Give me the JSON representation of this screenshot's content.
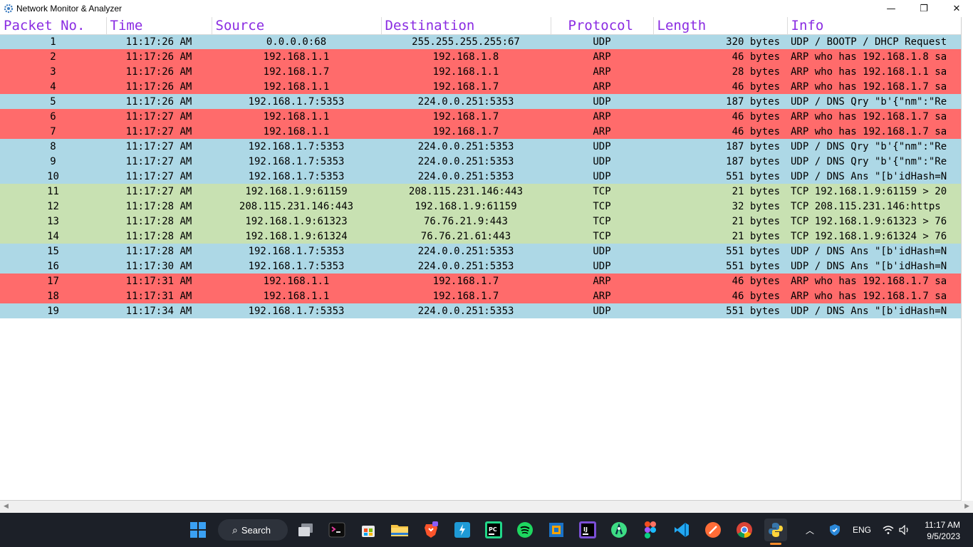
{
  "window": {
    "title": "Network Monitor & Analyzer",
    "app_icon": "gear-icon",
    "controls": {
      "minimize": "—",
      "maximize": "❐",
      "close": "✕"
    }
  },
  "table": {
    "columns": [
      "Packet No.",
      "Time",
      "Source",
      "Destination",
      "Protocol",
      "Length",
      "Info"
    ],
    "rows": [
      {
        "no": "1",
        "time": "11:17:26 AM",
        "src": "0.0.0.0:68",
        "dst": "255.255.255.255:67",
        "proto": "UDP",
        "len": "320 bytes",
        "info": "UDP / BOOTP / DHCP Request"
      },
      {
        "no": "2",
        "time": "11:17:26 AM",
        "src": "192.168.1.1",
        "dst": "192.168.1.8",
        "proto": "ARP",
        "len": "46 bytes",
        "info": "ARP who has 192.168.1.8 sa"
      },
      {
        "no": "3",
        "time": "11:17:26 AM",
        "src": "192.168.1.7",
        "dst": "192.168.1.1",
        "proto": "ARP",
        "len": "28 bytes",
        "info": "ARP who has 192.168.1.1 sa"
      },
      {
        "no": "4",
        "time": "11:17:26 AM",
        "src": "192.168.1.1",
        "dst": "192.168.1.7",
        "proto": "ARP",
        "len": "46 bytes",
        "info": "ARP who has 192.168.1.7 sa"
      },
      {
        "no": "5",
        "time": "11:17:26 AM",
        "src": "192.168.1.7:5353",
        "dst": "224.0.0.251:5353",
        "proto": "UDP",
        "len": "187 bytes",
        "info": "UDP / DNS Qry \"b'{\"nm\":\"Re"
      },
      {
        "no": "6",
        "time": "11:17:27 AM",
        "src": "192.168.1.1",
        "dst": "192.168.1.7",
        "proto": "ARP",
        "len": "46 bytes",
        "info": "ARP who has 192.168.1.7 sa"
      },
      {
        "no": "7",
        "time": "11:17:27 AM",
        "src": "192.168.1.1",
        "dst": "192.168.1.7",
        "proto": "ARP",
        "len": "46 bytes",
        "info": "ARP who has 192.168.1.7 sa"
      },
      {
        "no": "8",
        "time": "11:17:27 AM",
        "src": "192.168.1.7:5353",
        "dst": "224.0.0.251:5353",
        "proto": "UDP",
        "len": "187 bytes",
        "info": "UDP / DNS Qry \"b'{\"nm\":\"Re"
      },
      {
        "no": "9",
        "time": "11:17:27 AM",
        "src": "192.168.1.7:5353",
        "dst": "224.0.0.251:5353",
        "proto": "UDP",
        "len": "187 bytes",
        "info": "UDP / DNS Qry \"b'{\"nm\":\"Re"
      },
      {
        "no": "10",
        "time": "11:17:27 AM",
        "src": "192.168.1.7:5353",
        "dst": "224.0.0.251:5353",
        "proto": "UDP",
        "len": "551 bytes",
        "info": "UDP / DNS Ans \"[b'idHash=N"
      },
      {
        "no": "11",
        "time": "11:17:27 AM",
        "src": "192.168.1.9:61159",
        "dst": "208.115.231.146:443",
        "proto": "TCP",
        "len": "21 bytes",
        "info": "TCP 192.168.1.9:61159 > 20"
      },
      {
        "no": "12",
        "time": "11:17:28 AM",
        "src": "208.115.231.146:443",
        "dst": "192.168.1.9:61159",
        "proto": "TCP",
        "len": "32 bytes",
        "info": "TCP 208.115.231.146:https"
      },
      {
        "no": "13",
        "time": "11:17:28 AM",
        "src": "192.168.1.9:61323",
        "dst": "76.76.21.9:443",
        "proto": "TCP",
        "len": "21 bytes",
        "info": "TCP 192.168.1.9:61323 > 76"
      },
      {
        "no": "14",
        "time": "11:17:28 AM",
        "src": "192.168.1.9:61324",
        "dst": "76.76.21.61:443",
        "proto": "TCP",
        "len": "21 bytes",
        "info": "TCP 192.168.1.9:61324 > 76"
      },
      {
        "no": "15",
        "time": "11:17:28 AM",
        "src": "192.168.1.7:5353",
        "dst": "224.0.0.251:5353",
        "proto": "UDP",
        "len": "551 bytes",
        "info": "UDP / DNS Ans \"[b'idHash=N"
      },
      {
        "no": "16",
        "time": "11:17:30 AM",
        "src": "192.168.1.7:5353",
        "dst": "224.0.0.251:5353",
        "proto": "UDP",
        "len": "551 bytes",
        "info": "UDP / DNS Ans \"[b'idHash=N"
      },
      {
        "no": "17",
        "time": "11:17:31 AM",
        "src": "192.168.1.1",
        "dst": "192.168.1.7",
        "proto": "ARP",
        "len": "46 bytes",
        "info": "ARP who has 192.168.1.7 sa"
      },
      {
        "no": "18",
        "time": "11:17:31 AM",
        "src": "192.168.1.1",
        "dst": "192.168.1.7",
        "proto": "ARP",
        "len": "46 bytes",
        "info": "ARP who has 192.168.1.7 sa"
      },
      {
        "no": "19",
        "time": "11:17:34 AM",
        "src": "192.168.1.7:5353",
        "dst": "224.0.0.251:5353",
        "proto": "UDP",
        "len": "551 bytes",
        "info": "UDP / DNS Ans \"[b'idHash=N"
      }
    ],
    "row_colors": {
      "UDP": "#add8e6",
      "ARP": "#ff6b6b",
      "TCP": "#c8e1b2"
    },
    "header_color": "#8a2be2"
  },
  "taskbar": {
    "search_label": "Search",
    "apps": [
      "windows-start-icon",
      "task-view-icon",
      "terminal-icon",
      "microsoft-store-icon",
      "file-explorer-icon",
      "brave-browser-icon",
      "app-icon",
      "pycharm-icon",
      "spotify-icon",
      "virtualbox-icon",
      "intellij-icon",
      "android-studio-icon",
      "figma-icon",
      "vscode-icon",
      "postman-icon",
      "chrome-icon",
      "python-icon"
    ],
    "tray": {
      "language": "ENG",
      "time": "11:17 AM",
      "date": "9/5/2023"
    }
  }
}
